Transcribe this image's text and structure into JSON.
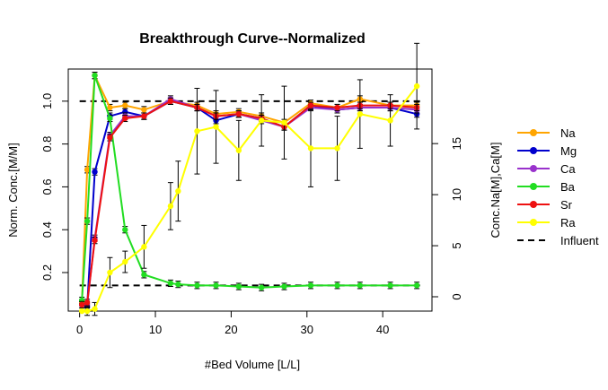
{
  "chart_data": {
    "type": "line",
    "title": "Breakthrough Curve--Normalized",
    "xlabel": "#Bed Volume [L/L]",
    "ylabel": "Norm. Conc.[M/M]",
    "y2label": "Conc.Na[M],Ca[M]",
    "xlim": [
      -1.5,
      46.5
    ],
    "ylim": [
      0.02,
      1.15
    ],
    "y2lim": [
      0,
      18
    ],
    "xticks": [
      0,
      10,
      20,
      30,
      40
    ],
    "yticks": [
      0.2,
      0.4,
      0.6,
      0.8,
      1.0
    ],
    "y2ticks": [
      0,
      5,
      10,
      15
    ],
    "tick_labels": {
      "x": [
        "0",
        "10",
        "20",
        "30",
        "40"
      ],
      "y": [
        "0.2",
        "0.4",
        "0.6",
        "0.8",
        "1.0"
      ],
      "y2": [
        "0",
        "5",
        "10",
        "15"
      ]
    },
    "grid": false,
    "legend_position": "right",
    "influent_lines": [
      1.0,
      0.14
    ],
    "series": [
      {
        "name": "Na",
        "color": "#FFA500",
        "x": [
          0.3,
          1.0,
          2.0,
          4.0,
          6.0,
          8.5,
          12.0,
          15.5,
          18.0,
          21.0,
          24.0,
          27.0,
          30.5,
          34.0,
          37.0,
          41.0,
          44.5
        ],
        "y": [
          0.06,
          0.68,
          1.12,
          0.97,
          0.98,
          0.96,
          1.0,
          0.98,
          0.94,
          0.95,
          0.93,
          0.9,
          0.99,
          0.97,
          1.01,
          0.98,
          0.98
        ]
      },
      {
        "name": "Mg",
        "color": "#0000CD",
        "x": [
          0.3,
          1.0,
          2.0,
          4.0,
          6.0,
          8.5,
          12.0,
          15.5,
          18.0,
          21.0,
          24.0,
          27.0,
          30.5,
          34.0,
          37.0,
          41.0,
          44.5
        ],
        "y": [
          0.05,
          0.04,
          0.67,
          0.93,
          0.95,
          0.93,
          1.0,
          0.97,
          0.91,
          0.94,
          0.92,
          0.88,
          0.98,
          0.96,
          0.97,
          0.97,
          0.94
        ]
      },
      {
        "name": "Ca",
        "color": "#9932CC",
        "x": [
          0.3,
          1.0,
          2.0,
          4.0,
          6.0,
          8.5,
          12.0,
          15.5,
          18.0,
          21.0,
          24.0,
          27.0,
          30.5,
          34.0,
          37.0,
          41.0,
          44.5
        ],
        "y": [
          0.05,
          0.05,
          0.36,
          0.84,
          0.93,
          0.93,
          1.01,
          0.97,
          0.93,
          0.94,
          0.91,
          0.88,
          0.97,
          0.96,
          0.97,
          0.97,
          0.96
        ]
      },
      {
        "name": "Ba",
        "color": "#22DD22",
        "x": [
          0.3,
          1.0,
          2.0,
          4.0,
          6.0,
          8.5,
          12.0,
          13.0,
          15.5,
          18.0,
          21.0,
          24.0,
          27.0,
          30.5,
          34.0,
          37.0,
          41.0,
          44.5
        ],
        "y": [
          0.07,
          0.44,
          1.12,
          0.92,
          0.4,
          0.19,
          0.15,
          0.145,
          0.14,
          0.14,
          0.135,
          0.13,
          0.135,
          0.14,
          0.14,
          0.14,
          0.14,
          0.14
        ]
      },
      {
        "name": "Sr",
        "color": "#EE1111",
        "x": [
          0.3,
          1.0,
          2.0,
          4.0,
          6.0,
          8.5,
          12.0,
          15.5,
          18.0,
          21.0,
          24.0,
          27.0,
          30.5,
          34.0,
          37.0,
          41.0,
          44.5
        ],
        "y": [
          0.05,
          0.06,
          0.35,
          0.83,
          0.92,
          0.93,
          1.0,
          0.97,
          0.93,
          0.94,
          0.92,
          0.88,
          0.98,
          0.97,
          0.98,
          0.98,
          0.97
        ]
      },
      {
        "name": "Ra",
        "color": "#FFFF00",
        "x": [
          0.3,
          1.0,
          2.0,
          4.0,
          6.0,
          8.5,
          12.0,
          13.0,
          15.5,
          18.0,
          21.0,
          24.0,
          27.0,
          30.5,
          34.0,
          37.0,
          41.0,
          44.5
        ],
        "y": [
          0.02,
          0.02,
          0.03,
          0.2,
          0.25,
          0.32,
          0.51,
          0.58,
          0.86,
          0.88,
          0.77,
          0.91,
          0.9,
          0.78,
          0.78,
          0.94,
          0.91,
          1.07
        ]
      }
    ],
    "legend_entries": [
      "Na",
      "Mg",
      "Ca",
      "Ba",
      "Sr",
      "Ra",
      "Influent"
    ]
  }
}
